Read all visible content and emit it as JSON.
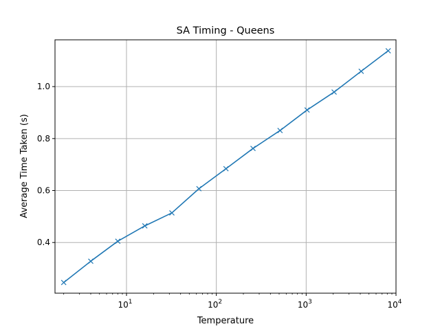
{
  "chart_data": {
    "type": "line",
    "title": "SA Timing - Queens",
    "xlabel": "Temperature",
    "ylabel": "Average Time Taken (s)",
    "xscale": "log",
    "xlim": [
      1.6,
      10000
    ],
    "ylim": [
      0.205,
      1.18
    ],
    "grid": true,
    "x_ticks": [
      {
        "value": 10,
        "base": "10",
        "exp": "1"
      },
      {
        "value": 100,
        "base": "10",
        "exp": "2"
      },
      {
        "value": 1000,
        "base": "10",
        "exp": "3"
      },
      {
        "value": 10000,
        "base": "10",
        "exp": "4"
      }
    ],
    "y_ticks": [
      {
        "value": 0.4,
        "label": "0.4"
      },
      {
        "value": 0.6,
        "label": "0.6"
      },
      {
        "value": 0.8,
        "label": "0.8"
      },
      {
        "value": 1.0,
        "label": "1.0"
      }
    ],
    "series": [
      {
        "color": "#1f77b4",
        "marker": "x",
        "x": [
          2,
          4,
          8,
          16,
          32,
          64,
          128,
          256,
          512,
          1024,
          2048,
          4096,
          8192
        ],
        "y": [
          0.246,
          0.328,
          0.405,
          0.464,
          0.514,
          0.607,
          0.684,
          0.762,
          0.831,
          0.91,
          0.979,
          1.059,
          1.138
        ]
      }
    ]
  }
}
